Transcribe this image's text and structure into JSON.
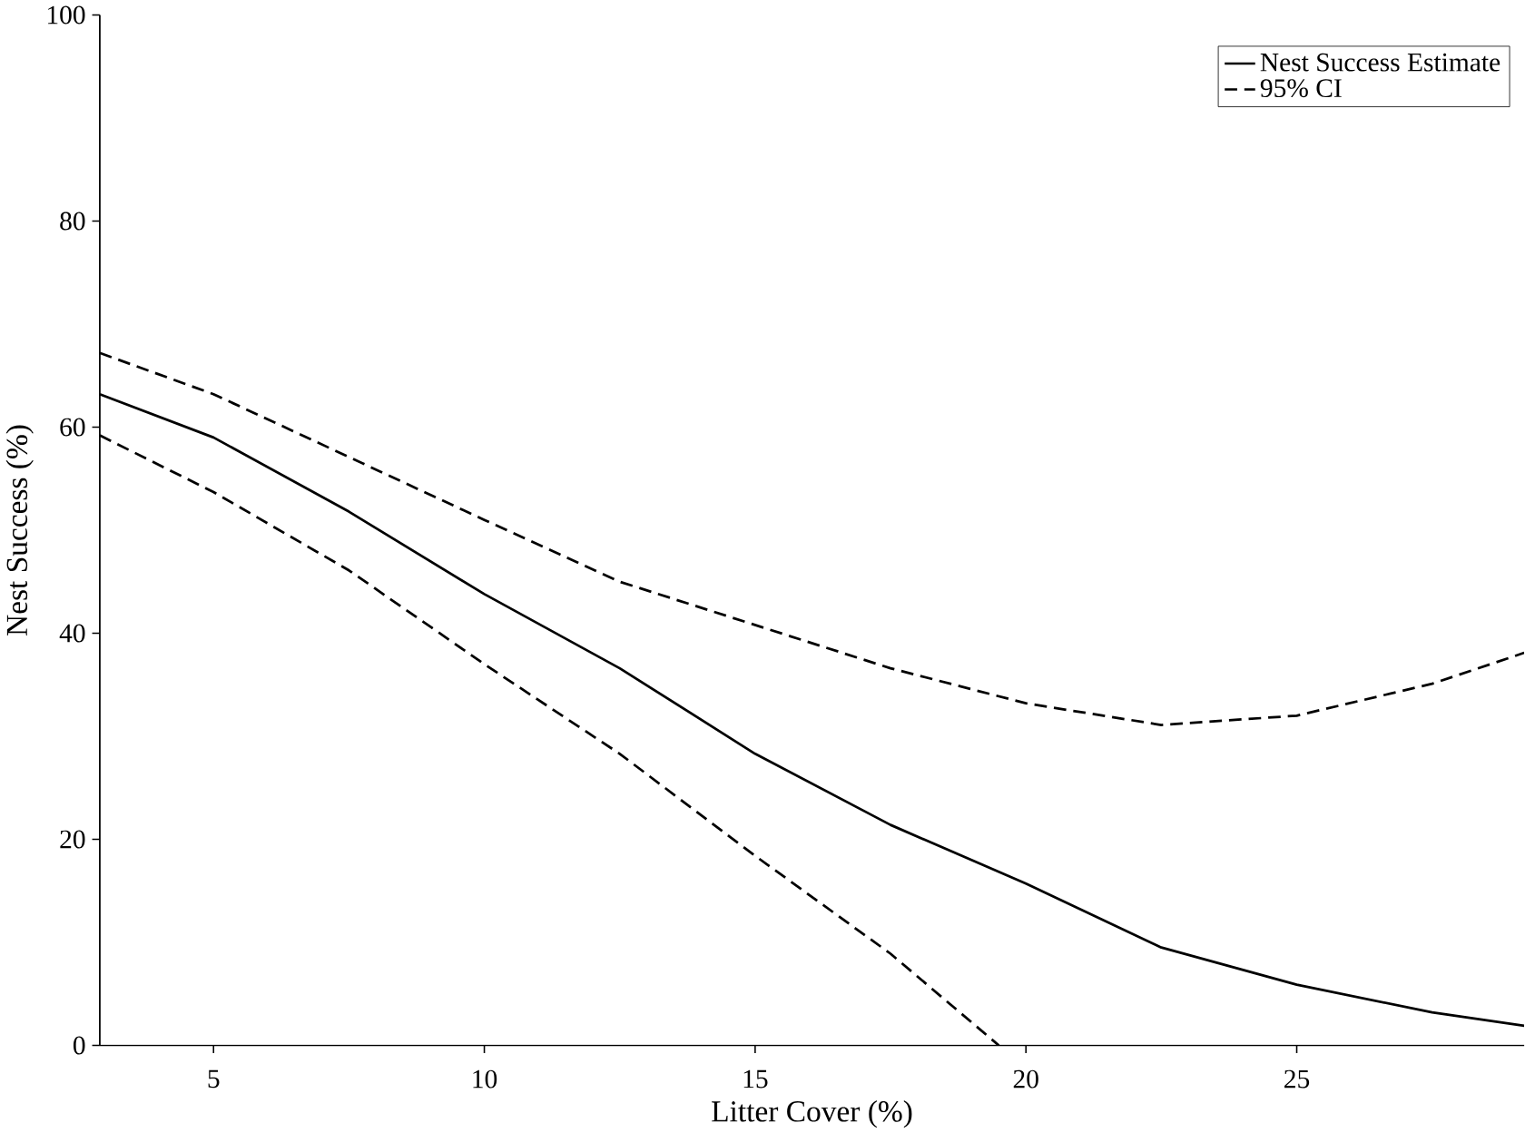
{
  "chart_data": {
    "type": "line",
    "xlabel": "Litter Cover (%)",
    "ylabel": "Nest Success (%)",
    "xlim": [
      2.9,
      29.2
    ],
    "xticks": [
      5,
      10,
      15,
      20,
      25
    ],
    "ylim": [
      0,
      100
    ],
    "yticks": [
      0,
      20,
      40,
      60,
      80,
      100
    ],
    "grid": false,
    "legend": "top right",
    "marker": "none",
    "series": [
      {
        "name": "Nest Success Estimate",
        "color": "#000000",
        "line_style": "solid",
        "x": [
          2.9,
          5,
          7.5,
          10,
          12.5,
          15,
          17.5,
          20,
          22.5,
          25,
          27.5,
          29.2
        ],
        "values": [
          63.2,
          59,
          51.8,
          43.8,
          36.6,
          28.3,
          21.4,
          15.7,
          9.5,
          5.9,
          3.2,
          1.9
        ]
      },
      {
        "name": "95% CI",
        "color": "#000000",
        "line_style": "dashed",
        "x": [
          2.9,
          5,
          7.5,
          10,
          12.5,
          15,
          17.5,
          20,
          22.5,
          25,
          27.5,
          29.2
        ],
        "values": [
          67.2,
          63.2,
          57.1,
          51,
          45,
          40.8,
          36.6,
          33.2,
          31.1,
          32,
          35.1,
          38.1
        ]
      },
      {
        "color": "#000000",
        "line_style": "dashed",
        "x": [
          2.9,
          5,
          7.5,
          10,
          12.5,
          15,
          17.5,
          19.5
        ],
        "values": [
          59.2,
          53.7,
          46.1,
          37,
          28.3,
          18.4,
          8.9,
          0
        ]
      }
    ]
  }
}
